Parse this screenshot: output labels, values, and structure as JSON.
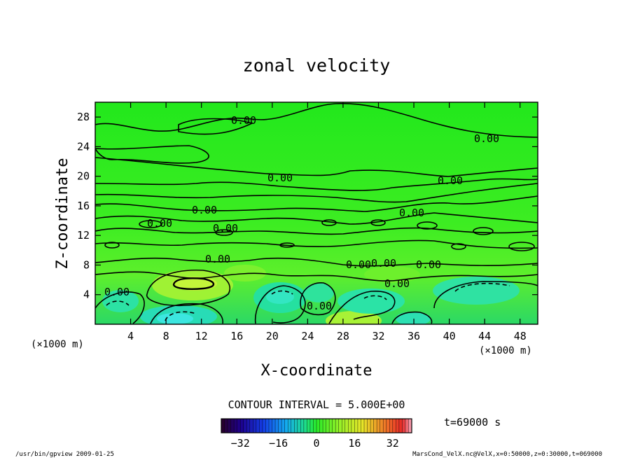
{
  "chart_data": {
    "type": "contour",
    "title": "zonal velocity",
    "xlabel": "X-coordinate",
    "ylabel": "Z-coordinate",
    "x_unit": "(×1000 m)",
    "y_unit": "(×1000 m)",
    "xlim": [
      0,
      50
    ],
    "ylim": [
      0,
      30
    ],
    "x_ticks": [
      4,
      8,
      12,
      16,
      20,
      24,
      28,
      32,
      36,
      40,
      44,
      48
    ],
    "y_ticks": [
      4,
      8,
      12,
      16,
      20,
      24,
      28
    ],
    "contour_interval_text": "CONTOUR INTERVAL = 5.000E+00",
    "time_text": "t=69000 s",
    "contour_labels": [
      "0.00",
      "0.00",
      "0.00",
      "0.00",
      "0.00",
      "0.00",
      "0.00",
      "0.00",
      "0.00",
      "0.00",
      "0.00",
      "0.00",
      "0.00",
      "0.00",
      "0.00"
    ],
    "colorbar": {
      "min": -40,
      "max": 40,
      "ticks": [
        -32,
        -16,
        0,
        16,
        32
      ]
    },
    "footer_left": "/usr/bin/gpview  2009-01-25",
    "footer_right": "MarsCond_VelX.nc@VelX,x=0:50000,z=0:30000,t=069000"
  }
}
